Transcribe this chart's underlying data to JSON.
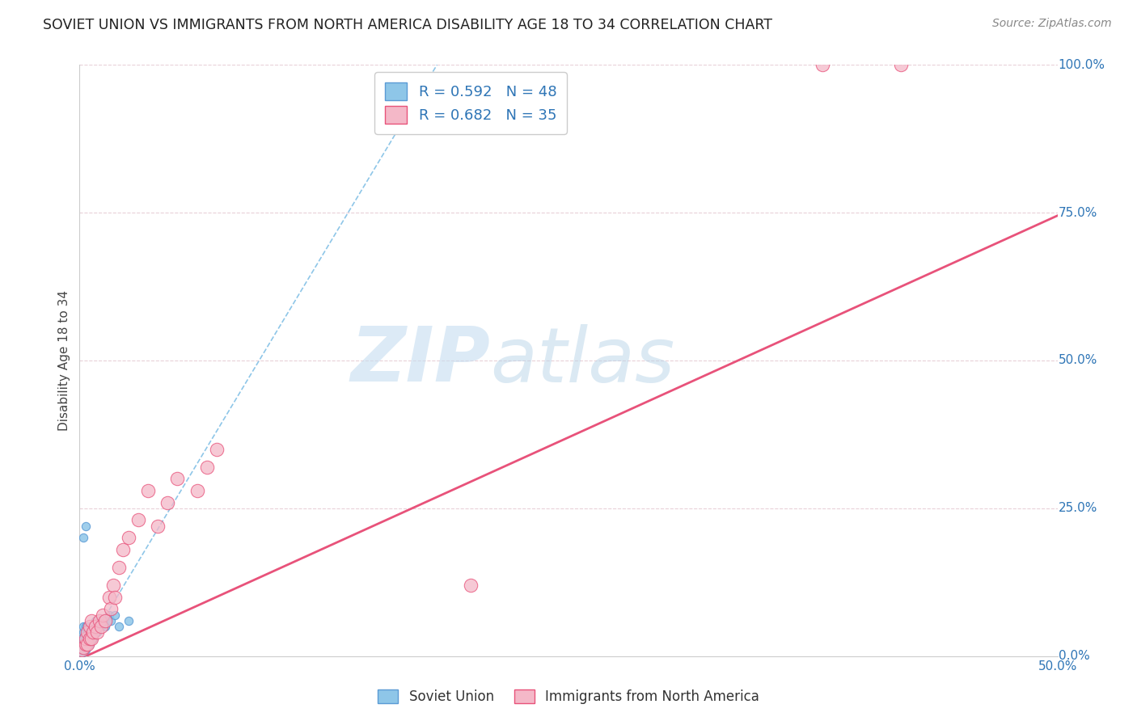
{
  "title": "SOVIET UNION VS IMMIGRANTS FROM NORTH AMERICA DISABILITY AGE 18 TO 34 CORRELATION CHART",
  "source": "Source: ZipAtlas.com",
  "ylabel": "Disability Age 18 to 34",
  "xlim": [
    0,
    0.5
  ],
  "ylim": [
    0,
    1.0
  ],
  "xticks": [
    0.0,
    0.5
  ],
  "yticks": [
    0.0,
    0.25,
    0.5,
    0.75,
    1.0
  ],
  "xtick_labels": [
    "0.0%",
    "50.0%"
  ],
  "ytick_labels_right": [
    "0.0%",
    "25.0%",
    "50.0%",
    "75.0%",
    "100.0%"
  ],
  "series1_name": "Soviet Union",
  "series1_color": "#8ec6e8",
  "series1_edge": "#5b9bd5",
  "series1_R": 0.592,
  "series1_N": 48,
  "series2_name": "Immigrants from North America",
  "series2_color": "#f4b8c8",
  "series2_edge": "#e8527a",
  "series2_R": 0.682,
  "series2_N": 35,
  "background_color": "#ffffff",
  "grid_color": "#e8d0d8",
  "watermark_zip_color": "#c5ddf0",
  "watermark_atlas_color": "#c5ddf0",
  "trendline1_color": "#8ec6e8",
  "trendline2_color": "#e8527a",
  "label_color": "#2e75b6",
  "series1_x": [
    0.001,
    0.001,
    0.001,
    0.001,
    0.001,
    0.001,
    0.002,
    0.002,
    0.002,
    0.002,
    0.002,
    0.003,
    0.003,
    0.003,
    0.003,
    0.003,
    0.004,
    0.004,
    0.004,
    0.004,
    0.005,
    0.005,
    0.005,
    0.005,
    0.006,
    0.006,
    0.006,
    0.007,
    0.007,
    0.007,
    0.008,
    0.008,
    0.008,
    0.009,
    0.009,
    0.01,
    0.01,
    0.011,
    0.012,
    0.013,
    0.014,
    0.015,
    0.016,
    0.018,
    0.02,
    0.025,
    0.003,
    0.002
  ],
  "series1_y": [
    0.005,
    0.01,
    0.015,
    0.02,
    0.025,
    0.03,
    0.01,
    0.02,
    0.03,
    0.04,
    0.05,
    0.01,
    0.02,
    0.03,
    0.04,
    0.05,
    0.02,
    0.03,
    0.04,
    0.05,
    0.02,
    0.03,
    0.04,
    0.05,
    0.03,
    0.04,
    0.05,
    0.03,
    0.04,
    0.05,
    0.04,
    0.05,
    0.06,
    0.04,
    0.05,
    0.05,
    0.06,
    0.05,
    0.06,
    0.05,
    0.06,
    0.07,
    0.06,
    0.07,
    0.05,
    0.06,
    0.22,
    0.2
  ],
  "series2_x": [
    0.001,
    0.002,
    0.003,
    0.003,
    0.004,
    0.004,
    0.005,
    0.005,
    0.006,
    0.006,
    0.007,
    0.008,
    0.009,
    0.01,
    0.011,
    0.012,
    0.013,
    0.015,
    0.016,
    0.017,
    0.018,
    0.02,
    0.022,
    0.025,
    0.03,
    0.035,
    0.04,
    0.045,
    0.05,
    0.06,
    0.065,
    0.07,
    0.2,
    0.38,
    0.42
  ],
  "series2_y": [
    0.01,
    0.015,
    0.02,
    0.03,
    0.02,
    0.04,
    0.03,
    0.05,
    0.03,
    0.06,
    0.04,
    0.05,
    0.04,
    0.06,
    0.05,
    0.07,
    0.06,
    0.1,
    0.08,
    0.12,
    0.1,
    0.15,
    0.18,
    0.2,
    0.23,
    0.28,
    0.22,
    0.26,
    0.3,
    0.28,
    0.32,
    0.35,
    0.12,
    1.0,
    1.0
  ],
  "trendline1_slope": 5.5,
  "trendline1_intercept": -0.005,
  "trendline2_slope": 1.5,
  "trendline2_intercept": -0.005
}
